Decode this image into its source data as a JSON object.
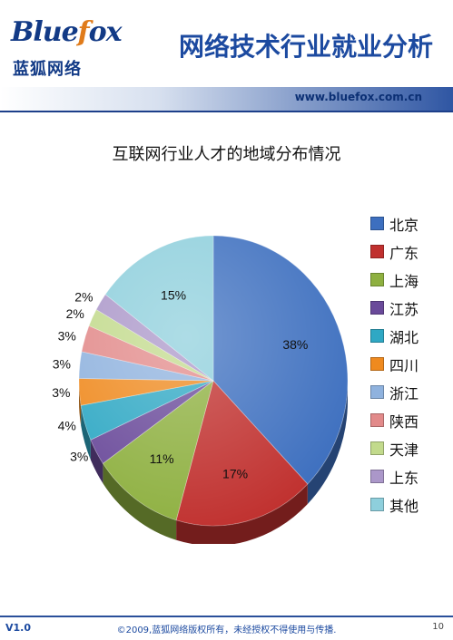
{
  "header": {
    "logo_script": "Bluefox",
    "logo_cn": "蓝狐网络",
    "title": "网络技术行业就业分析",
    "url": "www.bluefox.com.cn"
  },
  "chart_data": {
    "type": "pie",
    "title": "互联网行业人才的地域分布情况",
    "labels": [
      "北京",
      "广东",
      "上海",
      "江苏",
      "湖北",
      "四川",
      "浙江",
      "陕西",
      "天津",
      "上东",
      "其他"
    ],
    "values": [
      38,
      17,
      11,
      3,
      4,
      3,
      3,
      3,
      2,
      2,
      15
    ],
    "data_labels": [
      "38%",
      "17%",
      "11%",
      "3%",
      "4%",
      "3%",
      "3%",
      "3%",
      "2%",
      "2%",
      "15%"
    ],
    "colors": [
      "#3d6fbf",
      "#c0302e",
      "#8eb040",
      "#6a4a9a",
      "#2fa8c4",
      "#ef8a1f",
      "#8fb2de",
      "#e28a8a",
      "#c2da8c",
      "#ab97c9",
      "#8ecfdc"
    ],
    "legend_position": "right"
  },
  "footer": {
    "version": "V1.0",
    "copyright": "©2009,蓝狐网络版权所有，未经授权不得使用与传播.",
    "page": "10"
  }
}
